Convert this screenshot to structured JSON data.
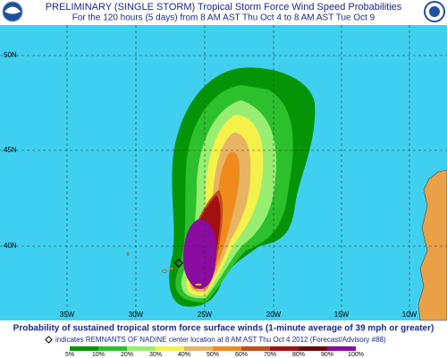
{
  "header": {
    "title_prefix": "PRELIMINARY (SINGLE STORM)",
    "title": "Tropical Storm Force Wind Speed Probabilities",
    "subtitle": "For the 120 hours (5 days) from 8 AM AST Thu Oct 4 to 8 AM AST Tue Oct 9"
  },
  "map": {
    "lat_labels": [
      "50N",
      "45N",
      "40N"
    ],
    "lon_labels": [
      "35W",
      "30W",
      "25W",
      "20W",
      "15W",
      "10W"
    ]
  },
  "footer": {
    "caption": "Probability of sustained tropical storm force surface winds (1-minute average of 39 mph or greater)",
    "note": "indicates REMNANTS OF NADINE center location at 8 AM AST Thu Oct 4 2012 (Forecast/Advisory #88)"
  },
  "legend": {
    "labels": [
      "5%",
      "10%",
      "20%",
      "30%",
      "40%",
      "50%",
      "60%",
      "70%",
      "80%",
      "90%",
      "100%"
    ]
  }
}
